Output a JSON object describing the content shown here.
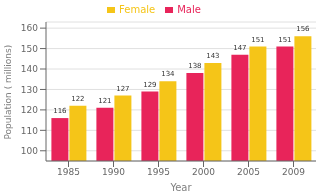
{
  "chart_data": {
    "type": "bar",
    "categories": [
      "1985",
      "1990",
      "1995",
      "2000",
      "2005",
      "2009"
    ],
    "series": [
      {
        "name": "Male",
        "color": "#E8245A",
        "values": [
          116,
          121,
          129,
          138,
          147,
          151
        ]
      },
      {
        "name": "Female",
        "color": "#F5C518",
        "values": [
          122,
          127,
          134,
          143,
          151,
          156
        ]
      }
    ],
    "xlabel": "Year",
    "ylabel": "Population ( millions)",
    "ylim": [
      95,
      163
    ],
    "yticks": [
      100,
      110,
      120,
      130,
      140,
      150,
      160
    ],
    "grid": true,
    "legend": "top",
    "data_labels": true
  }
}
